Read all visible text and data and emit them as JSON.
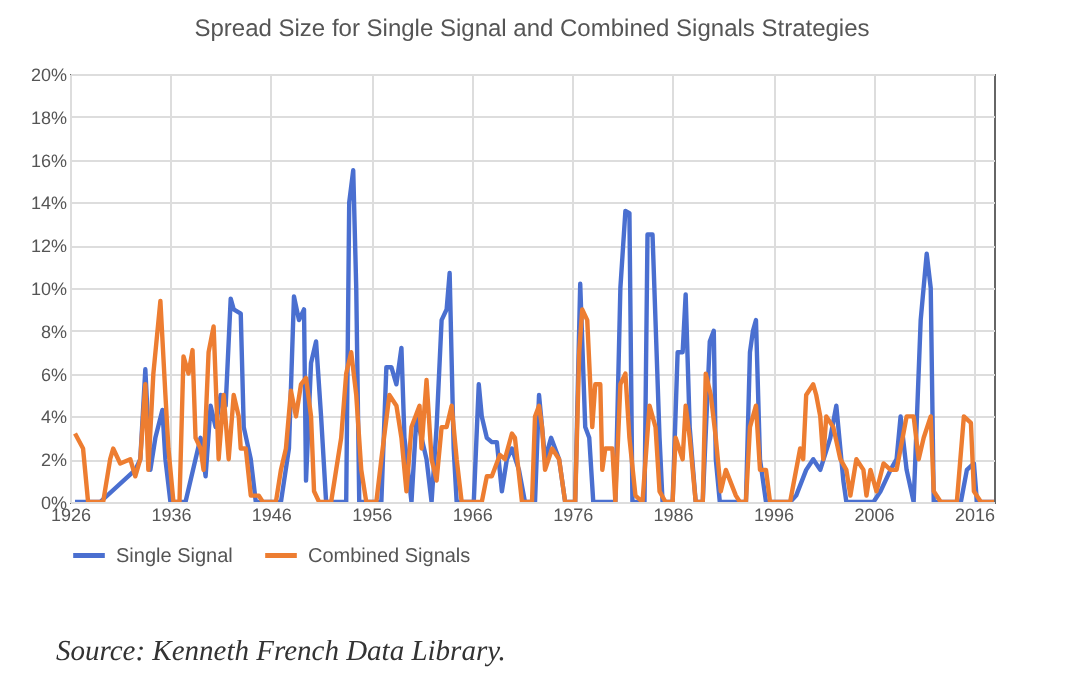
{
  "chart_data": {
    "type": "line",
    "title": "Spread Size for Single Signal and Combined Signals Strategies",
    "annotations": [
      "Source: Kenneth French Data Library."
    ],
    "xlim": [
      1926,
      2018
    ],
    "xticks": [
      1926,
      1936,
      1946,
      1956,
      1966,
      1976,
      1986,
      1996,
      2006,
      2016
    ],
    "ylim": [
      0,
      20
    ],
    "yticks": [
      {
        "value": 0,
        "label": "0%"
      },
      {
        "value": 2,
        "label": "2%"
      },
      {
        "value": 4,
        "label": "4%"
      },
      {
        "value": 6,
        "label": "6%"
      },
      {
        "value": 8,
        "label": "8%"
      },
      {
        "value": 10,
        "label": "10%"
      },
      {
        "value": 12,
        "label": "12%"
      },
      {
        "value": 14,
        "label": "14%"
      },
      {
        "value": 16,
        "label": "16%"
      },
      {
        "value": 18,
        "label": "18%"
      },
      {
        "value": 20,
        "label": "20%"
      }
    ],
    "grid": true,
    "legend": "bottom",
    "line_style": "solid",
    "series": [
      {
        "name": "Single Signal",
        "color": "#4a6fd0",
        "x": [
          1926.5,
          1929,
          1932.5,
          1933,
          1933.5,
          1934,
          1934.5,
          1935.2,
          1935.5,
          1936,
          1937.5,
          1938,
          1939,
          1939.5,
          1940,
          1940.5,
          1941,
          1941.5,
          1942,
          1942.3,
          1943,
          1943.3,
          1944,
          1944.5,
          1947,
          1947.8,
          1948.3,
          1948.8,
          1949.3,
          1949.5,
          1950,
          1950.5,
          1951,
          1951.5,
          1953.5,
          1953.8,
          1954.2,
          1954.5,
          1954.8,
          1957,
          1957.5,
          1958,
          1958.5,
          1959,
          1959.3,
          1960,
          1960.5,
          1961,
          1961.5,
          1962,
          1962.5,
          1963,
          1963.5,
          1963.8,
          1964.2,
          1964.5,
          1966.2,
          1966.7,
          1967,
          1967.5,
          1968,
          1968.5,
          1969,
          1969.5,
          1970,
          1970.7,
          1971.3,
          1972.3,
          1972.7,
          1973.3,
          1973.9,
          1974.7,
          1975.3,
          1976.3,
          1976.8,
          1977.3,
          1977.7,
          1978.1,
          1980.3,
          1980.8,
          1981.3,
          1981.7,
          1982,
          1983.2,
          1983.5,
          1984,
          1984.7,
          1985,
          1986,
          1986.5,
          1987,
          1987.3,
          1987.7,
          1988.3,
          1989,
          1989.7,
          1990.1,
          1990.3,
          1990.7,
          1993.3,
          1993.7,
          1994,
          1994.3,
          1994.7,
          1995.3,
          1997.7,
          1998.3,
          1999.3,
          2000,
          2000.7,
          2001.7,
          2002.3,
          2003,
          2003.3,
          2006,
          2006.7,
          2007.7,
          2008.3,
          2008.7,
          2009.3,
          2010,
          2010.7,
          2011.3,
          2011.7,
          2012,
          2014.7,
          2015.3,
          2016,
          2016.3,
          2018
        ],
        "values": [
          0,
          0,
          1.5,
          2,
          6.2,
          1.5,
          3,
          4.3,
          2,
          0,
          0,
          1,
          3,
          1.2,
          4.5,
          3.5,
          5,
          4.5,
          9.5,
          9,
          8.8,
          3.5,
          2,
          0,
          0,
          2.5,
          9.6,
          8.5,
          9,
          1,
          6.5,
          7.5,
          4,
          0,
          0,
          14,
          15.5,
          10,
          0,
          0,
          6.3,
          6.3,
          5.5,
          7.2,
          3,
          0,
          4,
          3,
          2,
          0,
          3.5,
          8.5,
          9,
          10.7,
          2.5,
          0,
          0,
          5.5,
          4,
          3,
          2.8,
          2.8,
          0.5,
          2,
          2.5,
          1.5,
          0,
          0,
          5,
          2,
          3,
          2,
          0,
          0,
          10.2,
          3.5,
          3,
          0,
          0,
          10,
          13.6,
          13.5,
          0,
          0,
          12.5,
          12.5,
          3,
          0,
          0,
          7,
          7,
          9.7,
          3.5,
          0,
          0,
          7.5,
          8,
          2,
          0,
          0,
          7,
          8,
          8.5,
          2,
          0,
          0,
          0.3,
          1.5,
          2,
          1.5,
          3,
          4.5,
          1,
          0,
          0,
          0.5,
          1.5,
          2,
          4,
          1.5,
          0,
          8.5,
          11.6,
          10,
          0,
          0,
          1.5,
          1.8,
          0,
          0
        ]
      },
      {
        "name": "Combined Signals",
        "color": "#ed7d31",
        "x": [
          1926.5,
          1927.3,
          1927.8,
          1929.3,
          1930,
          1930.3,
          1931,
          1932,
          1932.5,
          1933,
          1933.5,
          1933.8,
          1934.3,
          1935,
          1935.5,
          1935.8,
          1936.3,
          1936.9,
          1937.3,
          1937.8,
          1938.2,
          1938.5,
          1939,
          1939.3,
          1939.8,
          1940.3,
          1940.8,
          1941.3,
          1941.8,
          1942.3,
          1942.8,
          1943,
          1943.5,
          1944,
          1944.8,
          1945.2,
          1946.5,
          1947,
          1947.5,
          1948,
          1948.5,
          1949,
          1949.5,
          1950,
          1950.3,
          1950.8,
          1952,
          1952.5,
          1953,
          1953.5,
          1954,
          1954.5,
          1955,
          1955.5,
          1956.5,
          1957,
          1957.8,
          1958.5,
          1959,
          1959.5,
          1960,
          1960.8,
          1961,
          1961.5,
          1962,
          1962.5,
          1963,
          1963.5,
          1964,
          1964.5,
          1965,
          1967,
          1967.5,
          1968,
          1968.8,
          1969.3,
          1970,
          1970.3,
          1971,
          1972,
          1972.3,
          1972.7,
          1973,
          1973.3,
          1974,
          1974.7,
          1975.3,
          1976.3,
          1976.7,
          1977,
          1977.5,
          1978,
          1978.3,
          1978.8,
          1979,
          1979.3,
          1980,
          1980.3,
          1980.8,
          1981.3,
          1981.7,
          1982.3,
          1983,
          1983.7,
          1984.3,
          1984.7,
          1985.3,
          1986,
          1986.3,
          1987,
          1987.3,
          1987.7,
          1988.3,
          1989,
          1989.3,
          1989.8,
          1990.3,
          1990.8,
          1991.3,
          1992.3,
          1992.7,
          1993.3,
          1993.7,
          1994.3,
          1994.7,
          1995.3,
          1995.7,
          1997.7,
          1998.7,
          1999,
          1999.3,
          2000,
          2000.3,
          2000.7,
          2001,
          2001.3,
          2002,
          2002.7,
          2003.3,
          2003.7,
          2004.3,
          2005,
          2005.3,
          2005.7,
          2006.3,
          2007,
          2007.7,
          2008.3,
          2008.7,
          2009.3,
          2010,
          2010.5,
          2011,
          2011.7,
          2012,
          2012.7,
          2014.3,
          2015,
          2015.7,
          2016,
          2016.7,
          2018
        ],
        "values": [
          3.2,
          2.5,
          0,
          0,
          2,
          2.5,
          1.8,
          2,
          1.2,
          2,
          5.5,
          1.5,
          6,
          9.4,
          5,
          2.5,
          0,
          0,
          6.8,
          6,
          7.1,
          3,
          2.5,
          1.5,
          7,
          8.2,
          2,
          5,
          2,
          5,
          4,
          2.5,
          2.5,
          0.3,
          0.3,
          0,
          0,
          1.5,
          2.5,
          5.2,
          4,
          5.5,
          5.8,
          4,
          0.5,
          0,
          0,
          1.5,
          3,
          6,
          7,
          5,
          1.5,
          0,
          0,
          2,
          5,
          4.5,
          3,
          0.5,
          3.5,
          4.5,
          2.5,
          5.7,
          2,
          1,
          3.5,
          3.5,
          4.5,
          2,
          0,
          0,
          1.2,
          1.2,
          2.2,
          2,
          3.2,
          3,
          0,
          0,
          4,
          4.5,
          3.5,
          1.5,
          2.5,
          2,
          0,
          0,
          7,
          9,
          8.5,
          3.5,
          5.5,
          5.5,
          1.5,
          2.5,
          2.5,
          0,
          5.5,
          6,
          3,
          0.3,
          0,
          4.5,
          3.5,
          0.5,
          0,
          0,
          3,
          2,
          4.5,
          3,
          0,
          0,
          6,
          5,
          3,
          0.5,
          1.5,
          0.3,
          0,
          0,
          3.5,
          4.5,
          1.5,
          1.5,
          0,
          0,
          2.5,
          2,
          5,
          5.5,
          5,
          4,
          2,
          4,
          3.5,
          2,
          1.5,
          0.3,
          2,
          1.5,
          0.3,
          1.5,
          0.5,
          1.8,
          1.5,
          1.5,
          2.5,
          4,
          4,
          2,
          3,
          4,
          0.5,
          0,
          0,
          4,
          3.7,
          0.5,
          0,
          0
        ]
      }
    ]
  }
}
